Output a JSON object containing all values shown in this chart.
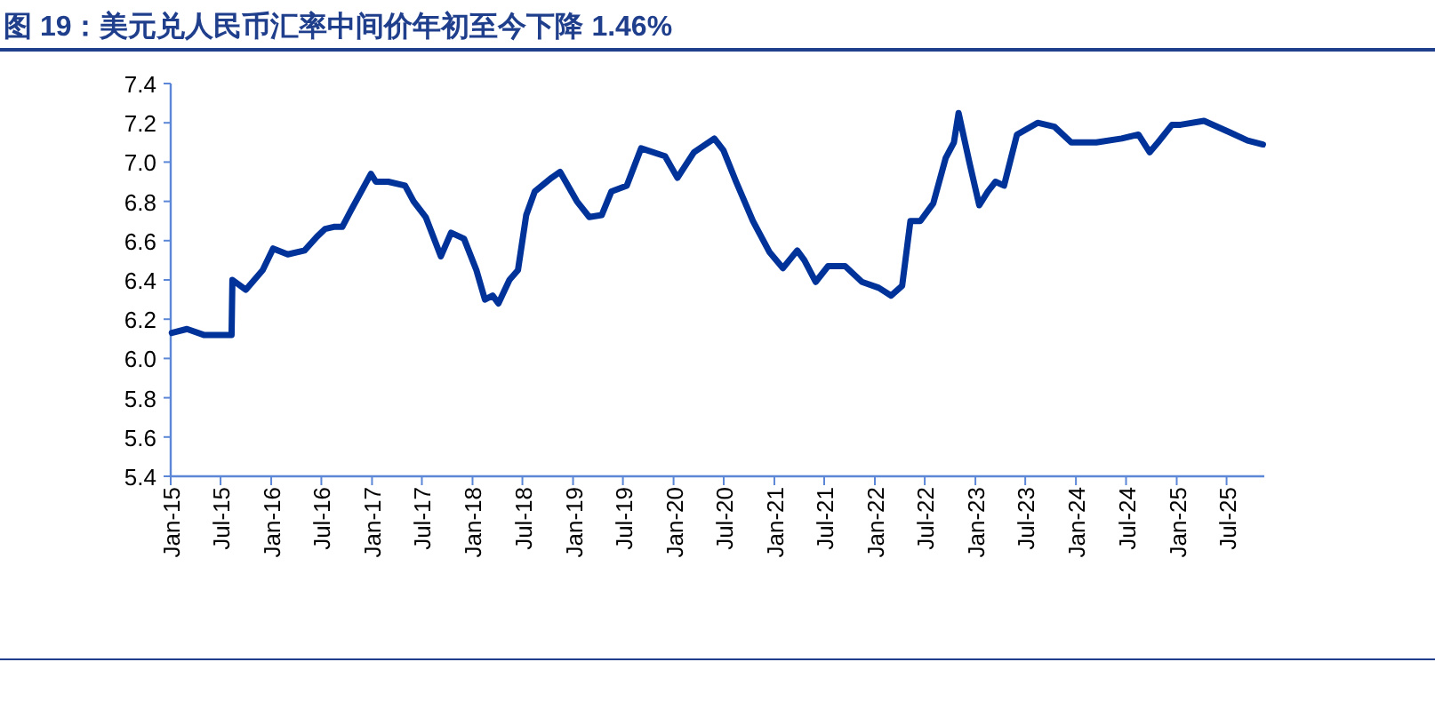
{
  "chart_data": {
    "type": "line",
    "title": "图 19：美元兑人民币汇率中间价年初至今下降 1.46%",
    "xlim": [
      "2015-01-01",
      "2025-11-15"
    ],
    "xticks": [
      {
        "value": "2015-01",
        "label": "Jan-15"
      },
      {
        "value": "2015-07",
        "label": "Jul-15"
      },
      {
        "value": "2016-01",
        "label": "Jan-16"
      },
      {
        "value": "2016-07",
        "label": "Jul-16"
      },
      {
        "value": "2017-01",
        "label": "Jan-17"
      },
      {
        "value": "2017-07",
        "label": "Jul-17"
      },
      {
        "value": "2018-01",
        "label": "Jan-18"
      },
      {
        "value": "2018-07",
        "label": "Jul-18"
      },
      {
        "value": "2019-01",
        "label": "Jan-19"
      },
      {
        "value": "2019-07",
        "label": "Jul-19"
      },
      {
        "value": "2020-01",
        "label": "Jan-20"
      },
      {
        "value": "2020-07",
        "label": "Jul-20"
      },
      {
        "value": "2021-01",
        "label": "Jan-21"
      },
      {
        "value": "2021-07",
        "label": "Jul-21"
      },
      {
        "value": "2022-01",
        "label": "Jan-22"
      },
      {
        "value": "2022-07",
        "label": "Jul-22"
      },
      {
        "value": "2023-01",
        "label": "Jan-23"
      },
      {
        "value": "2023-07",
        "label": "Jul-23"
      },
      {
        "value": "2024-01",
        "label": "Jan-24"
      },
      {
        "value": "2024-07",
        "label": "Jul-24"
      },
      {
        "value": "2025-01",
        "label": "Jan-25"
      },
      {
        "value": "2025-07",
        "label": "Jul-25"
      }
    ],
    "ylim": [
      5.4,
      7.4
    ],
    "yticks": [
      {
        "value": 5.4,
        "label": "5.4"
      },
      {
        "value": 5.6,
        "label": "5.6"
      },
      {
        "value": 5.8,
        "label": "5.8"
      },
      {
        "value": 6.0,
        "label": "6.0"
      },
      {
        "value": 6.2,
        "label": "6.2"
      },
      {
        "value": 6.4,
        "label": "6.4"
      },
      {
        "value": 6.6,
        "label": "6.6"
      },
      {
        "value": 6.8,
        "label": "6.8"
      },
      {
        "value": 7.0,
        "label": "7.0"
      },
      {
        "value": 7.2,
        "label": "7.2"
      },
      {
        "value": 7.4,
        "label": "7.4"
      }
    ],
    "grid": false,
    "marker": "none",
    "line_style": "solid",
    "x": [
      "2015-01-05",
      "2015-03-01",
      "2015-05-01",
      "2015-08-10",
      "2015-08-13",
      "2015-10-01",
      "2015-12-01",
      "2016-01-08",
      "2016-03-01",
      "2016-05-01",
      "2016-06-15",
      "2016-07-15",
      "2016-08-15",
      "2016-09-15",
      "2016-10-15",
      "2016-12-28",
      "2017-01-15",
      "2017-03-01",
      "2017-05-01",
      "2017-06-01",
      "2017-07-15",
      "2017-09-08",
      "2017-10-15",
      "2017-12-01",
      "2018-01-15",
      "2018-02-15",
      "2018-03-15",
      "2018-04-05",
      "2018-05-15",
      "2018-06-15",
      "2018-07-15",
      "2018-08-15",
      "2018-10-15",
      "2018-11-15",
      "2019-01-15",
      "2019-03-01",
      "2019-04-15",
      "2019-05-20",
      "2019-07-15",
      "2019-09-05",
      "2019-12-01",
      "2020-01-15",
      "2020-03-15",
      "2020-05-28",
      "2020-06-30",
      "2020-08-15",
      "2020-10-15",
      "2020-12-15",
      "2021-02-01",
      "2021-03-25",
      "2021-04-20",
      "2021-05-31",
      "2021-07-15",
      "2021-09-15",
      "2021-11-15",
      "2022-01-15",
      "2022-03-01",
      "2022-04-10",
      "2022-05-10",
      "2022-06-15",
      "2022-08-01",
      "2022-09-15",
      "2022-10-15",
      "2022-11-01",
      "2022-12-10",
      "2023-01-15",
      "2023-02-15",
      "2023-03-15",
      "2023-04-15",
      "2023-06-01",
      "2023-08-15",
      "2023-10-15",
      "2023-12-15",
      "2024-03-15",
      "2024-06-15",
      "2024-08-15",
      "2024-09-25",
      "2024-10-25",
      "2024-12-15",
      "2025-01-15",
      "2025-04-10",
      "2025-07-15",
      "2025-09-15",
      "2025-11-10"
    ],
    "series": [
      {
        "color": "#003399",
        "values": [
          6.13,
          6.15,
          6.12,
          6.12,
          6.4,
          6.35,
          6.45,
          6.56,
          6.53,
          6.55,
          6.62,
          6.66,
          6.67,
          6.67,
          6.75,
          6.94,
          6.9,
          6.9,
          6.88,
          6.8,
          6.72,
          6.52,
          6.64,
          6.61,
          6.45,
          6.3,
          6.32,
          6.28,
          6.4,
          6.45,
          6.73,
          6.85,
          6.92,
          6.95,
          6.8,
          6.72,
          6.73,
          6.85,
          6.88,
          7.07,
          7.03,
          6.92,
          7.05,
          7.12,
          7.06,
          6.9,
          6.7,
          6.54,
          6.46,
          6.55,
          6.5,
          6.39,
          6.47,
          6.47,
          6.39,
          6.36,
          6.32,
          6.37,
          6.7,
          6.7,
          6.79,
          7.02,
          7.1,
          7.25,
          7.0,
          6.78,
          6.85,
          6.9,
          6.88,
          7.14,
          7.2,
          7.18,
          7.1,
          7.1,
          7.12,
          7.14,
          7.05,
          7.1,
          7.19,
          7.19,
          7.21,
          7.15,
          7.11,
          7.09
        ]
      }
    ]
  }
}
